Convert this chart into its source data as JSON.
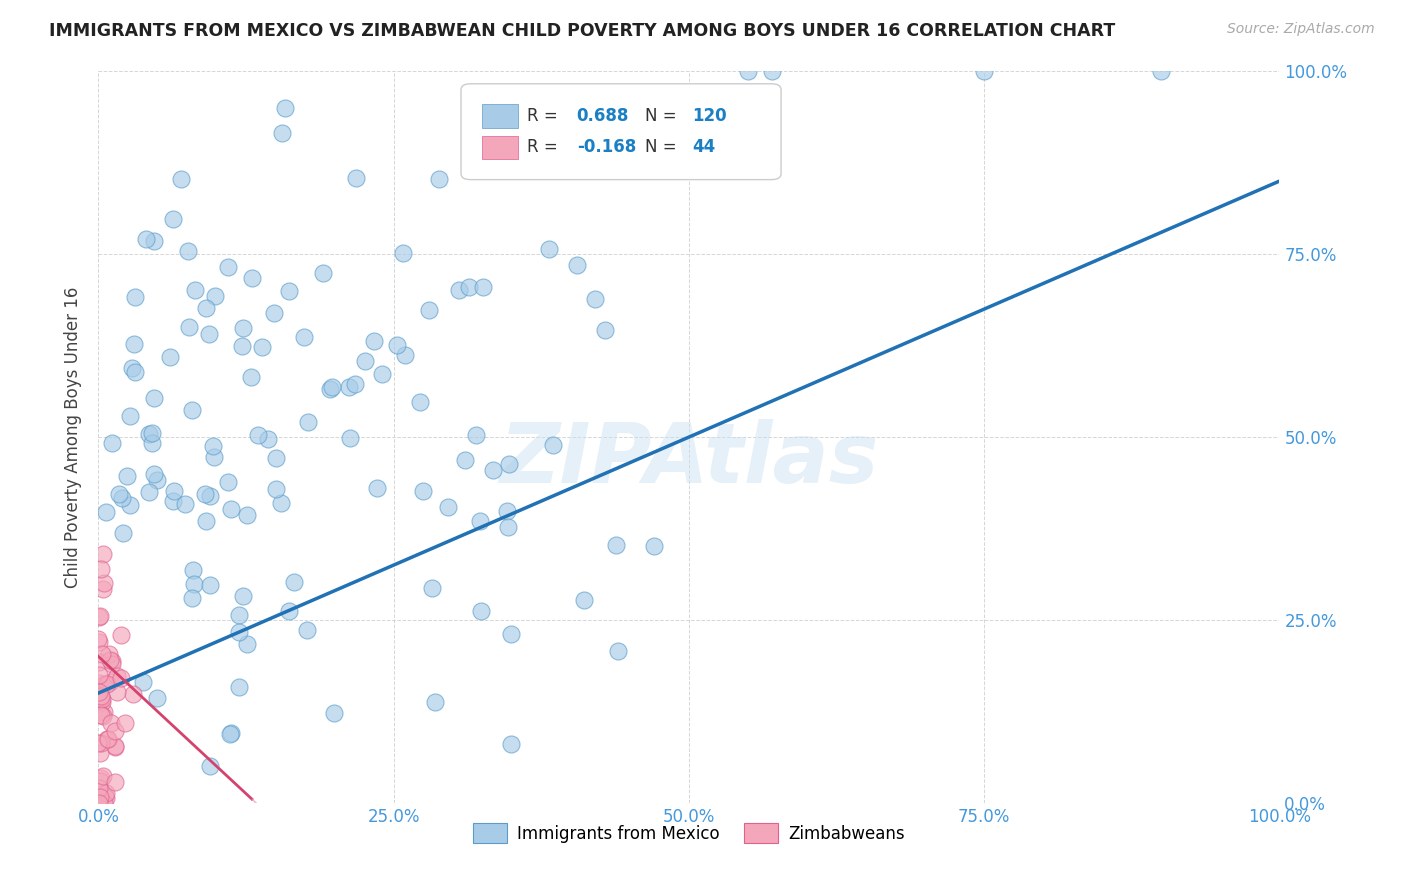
{
  "title": "IMMIGRANTS FROM MEXICO VS ZIMBABWEAN CHILD POVERTY AMONG BOYS UNDER 16 CORRELATION CHART",
  "source": "Source: ZipAtlas.com",
  "ylabel": "Child Poverty Among Boys Under 16",
  "xlim": [
    0.0,
    1.0
  ],
  "ylim": [
    0.0,
    1.0
  ],
  "xticks": [
    0.0,
    0.25,
    0.5,
    0.75,
    1.0
  ],
  "yticks": [
    0.0,
    0.25,
    0.5,
    0.75,
    1.0
  ],
  "xticklabels": [
    "0.0%",
    "25.0%",
    "50.0%",
    "75.0%",
    "100.0%"
  ],
  "yticklabels": [
    "0.0%",
    "25.0%",
    "50.0%",
    "75.0%",
    "100.0%"
  ],
  "blue_R": 0.688,
  "blue_N": 120,
  "pink_R": -0.168,
  "pink_N": 44,
  "blue_color": "#a8cce8",
  "pink_color": "#f4a7bb",
  "blue_edge_color": "#5b9dc9",
  "pink_edge_color": "#e06090",
  "blue_line_color": "#2171b5",
  "pink_line_color": "#d4436e",
  "pink_dash_color": "#e8a0b8",
  "watermark": "ZIPAtlas",
  "legend_label_blue": "Immigrants from Mexico",
  "legend_label_pink": "Zimbabweans",
  "background_color": "#ffffff",
  "grid_color": "#cccccc",
  "title_color": "#222222",
  "source_color": "#aaaaaa",
  "tick_color": "#4499dd",
  "ylabel_color": "#444444"
}
